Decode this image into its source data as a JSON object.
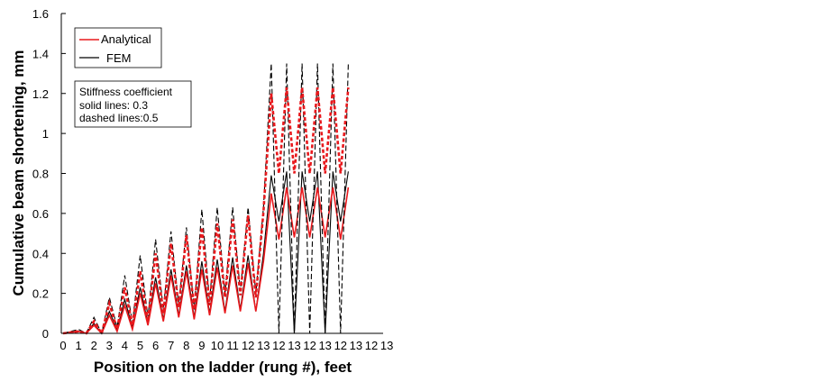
{
  "chart_data": {
    "type": "line",
    "xlabel": "Position on the ladder (rung #), feet",
    "ylabel": "Cumulative beam shortening, mm",
    "ylim": [
      0,
      1.6
    ],
    "yticks": [
      0,
      0.2,
      0.4,
      0.6,
      0.8,
      1,
      1.2,
      1.4,
      1.6
    ],
    "yticklabels": [
      "0",
      "0.2",
      "0.4",
      "0.6",
      "0.8",
      "1",
      "1.2",
      "1.4",
      "1.6"
    ],
    "xticklabels": [
      "0",
      "1",
      "2",
      "3",
      "4",
      "5",
      "6",
      "7",
      "8",
      "9",
      "10",
      "11",
      "12",
      "13",
      "12",
      "13",
      "12",
      "13",
      "12",
      "13",
      "12",
      "13"
    ],
    "grid": false,
    "legend_position": "top-left",
    "legend": [
      {
        "name": "Analytical",
        "color": "#e8181c"
      },
      {
        "name": "FEM",
        "color": "#000000"
      }
    ],
    "annotation": [
      "Stiffness coefficient",
      "solid lines: 0.3",
      "dashed lines:0.5"
    ],
    "series": [
      {
        "name": "Analytical",
        "stiffness": 0.3,
        "style": "solid",
        "color": "#e8181c",
        "points": [
          [
            0,
            0
          ],
          [
            1,
            0.01
          ],
          [
            1.5,
            0
          ],
          [
            2,
            0.04
          ],
          [
            2.5,
            0
          ],
          [
            3,
            0.09
          ],
          [
            3.5,
            0.01
          ],
          [
            4,
            0.14
          ],
          [
            4.5,
            0.02
          ],
          [
            5,
            0.2
          ],
          [
            5.5,
            0.04
          ],
          [
            6,
            0.25
          ],
          [
            6.5,
            0.06
          ],
          [
            7,
            0.29
          ],
          [
            7.5,
            0.08
          ],
          [
            8,
            0.31
          ],
          [
            8.5,
            0.07
          ],
          [
            9,
            0.32
          ],
          [
            9.5,
            0.09
          ],
          [
            10,
            0.33
          ],
          [
            10.5,
            0.1
          ],
          [
            11,
            0.34
          ],
          [
            11.5,
            0.11
          ],
          [
            12,
            0.35
          ],
          [
            12.5,
            0.11
          ],
          [
            13,
            0.36
          ],
          [
            13.5,
            0.7
          ],
          [
            14,
            0.47
          ],
          [
            14.5,
            0.73
          ],
          [
            15,
            0.48
          ],
          [
            15.5,
            0.73
          ],
          [
            16,
            0.48
          ],
          [
            16.5,
            0.73
          ],
          [
            17,
            0.48
          ],
          [
            17.5,
            0.73
          ],
          [
            18,
            0.47
          ],
          [
            18.5,
            0.73
          ]
        ]
      },
      {
        "name": "FEM",
        "stiffness": 0.3,
        "style": "solid",
        "color": "#000000",
        "points": [
          [
            0,
            0
          ],
          [
            1,
            0.01
          ],
          [
            1.5,
            0
          ],
          [
            2,
            0.05
          ],
          [
            2.5,
            0
          ],
          [
            3,
            0.11
          ],
          [
            3.5,
            0.02
          ],
          [
            4,
            0.17
          ],
          [
            4.5,
            0.03
          ],
          [
            5,
            0.23
          ],
          [
            5.5,
            0.05
          ],
          [
            6,
            0.28
          ],
          [
            6.5,
            0.07
          ],
          [
            7,
            0.32
          ],
          [
            7.5,
            0.09
          ],
          [
            8,
            0.34
          ],
          [
            8.5,
            0.08
          ],
          [
            9,
            0.36
          ],
          [
            9.5,
            0.1
          ],
          [
            10,
            0.37
          ],
          [
            10.5,
            0.11
          ],
          [
            11,
            0.38
          ],
          [
            11.5,
            0.12
          ],
          [
            12,
            0.39
          ],
          [
            12.5,
            0.11
          ],
          [
            13,
            0.4
          ],
          [
            13.5,
            0.79
          ],
          [
            14,
            0.56
          ],
          [
            14.5,
            0.81
          ],
          [
            15,
            0
          ],
          [
            15.5,
            0.81
          ],
          [
            16,
            0.56
          ],
          [
            16.5,
            0.81
          ],
          [
            17,
            0
          ],
          [
            17.5,
            0.81
          ],
          [
            18,
            0.56
          ],
          [
            18.5,
            0.81
          ]
        ]
      },
      {
        "name": "Analytical",
        "stiffness": 0.5,
        "style": "dashed",
        "color": "#e8181c",
        "points": [
          [
            0,
            0
          ],
          [
            1,
            0.01
          ],
          [
            1.5,
            0
          ],
          [
            2,
            0.06
          ],
          [
            2.5,
            0
          ],
          [
            3,
            0.15
          ],
          [
            3.5,
            0.02
          ],
          [
            4,
            0.23
          ],
          [
            4.5,
            0.04
          ],
          [
            5,
            0.31
          ],
          [
            5.5,
            0.06
          ],
          [
            6,
            0.4
          ],
          [
            6.5,
            0.1
          ],
          [
            7,
            0.45
          ],
          [
            7.5,
            0.13
          ],
          [
            8,
            0.49
          ],
          [
            8.5,
            0.12
          ],
          [
            9,
            0.53
          ],
          [
            9.5,
            0.14
          ],
          [
            10,
            0.55
          ],
          [
            10.5,
            0.18
          ],
          [
            11,
            0.57
          ],
          [
            11.5,
            0.19
          ],
          [
            12,
            0.59
          ],
          [
            12.5,
            0.18
          ],
          [
            13,
            0.61
          ],
          [
            13.5,
            1.2
          ],
          [
            14,
            0.8
          ],
          [
            14.5,
            1.23
          ],
          [
            15,
            0.8
          ],
          [
            15.5,
            1.23
          ],
          [
            16,
            0.8
          ],
          [
            16.5,
            1.23
          ],
          [
            17,
            0.8
          ],
          [
            17.5,
            1.23
          ],
          [
            18,
            0.8
          ],
          [
            18.5,
            1.23
          ]
        ]
      },
      {
        "name": "FEM",
        "stiffness": 0.5,
        "style": "dashed",
        "color": "#000000",
        "points": [
          [
            0,
            0
          ],
          [
            1,
            0.02
          ],
          [
            1.5,
            0
          ],
          [
            2,
            0.08
          ],
          [
            2.5,
            0
          ],
          [
            3,
            0.18
          ],
          [
            3.5,
            0.03
          ],
          [
            4,
            0.29
          ],
          [
            4.5,
            0.05
          ],
          [
            5,
            0.39
          ],
          [
            5.5,
            0.08
          ],
          [
            6,
            0.47
          ],
          [
            6.5,
            0.12
          ],
          [
            7,
            0.51
          ],
          [
            7.5,
            0.14
          ],
          [
            8,
            0.53
          ],
          [
            8.5,
            0.12
          ],
          [
            9,
            0.62
          ],
          [
            9.5,
            0.16
          ],
          [
            10,
            0.63
          ],
          [
            10.5,
            0.2
          ],
          [
            11,
            0.63
          ],
          [
            11.5,
            0.21
          ],
          [
            12,
            0.63
          ],
          [
            12.5,
            0.2
          ],
          [
            13,
            0.63
          ],
          [
            13.5,
            1.35
          ],
          [
            14,
            0
          ],
          [
            14.5,
            1.35
          ],
          [
            15,
            0
          ],
          [
            15.5,
            1.35
          ],
          [
            16,
            0
          ],
          [
            16.5,
            1.35
          ],
          [
            17,
            0
          ],
          [
            17.5,
            1.35
          ],
          [
            18,
            0
          ],
          [
            18.5,
            1.35
          ]
        ]
      }
    ]
  }
}
